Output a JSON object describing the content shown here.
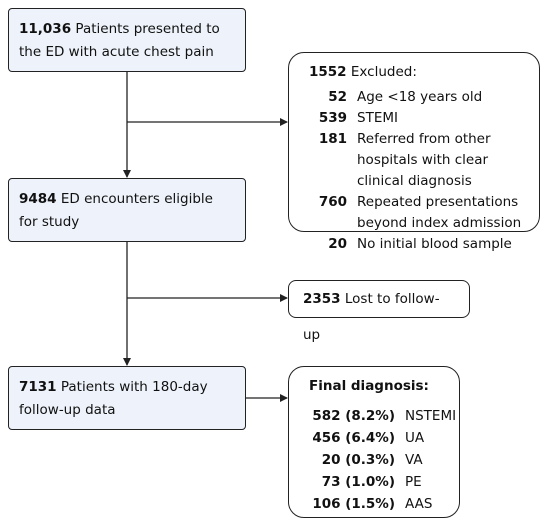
{
  "steps": [
    {
      "number": "11,036",
      "text": "Patients presented to the ED with acute chest pain"
    },
    {
      "number": "9484",
      "text": "ED encounters eligible for study"
    },
    {
      "number": "7131",
      "text": "Patients with 180-day follow-up data"
    }
  ],
  "excluded": {
    "number": "1552",
    "text": "Excluded:",
    "items": [
      {
        "number": "52",
        "text": "Age <18 years old"
      },
      {
        "number": "539",
        "text": "STEMI"
      },
      {
        "number": "181",
        "text": "Referred from other hospitals with clear clinical diagnosis"
      },
      {
        "number": "760",
        "text": "Repeated presentations beyond index admission"
      },
      {
        "number": "20",
        "text": "No initial blood sample"
      }
    ]
  },
  "lost": {
    "number": "2353",
    "text": "Lost to follow-up"
  },
  "final": {
    "title": "Final diagnosis:",
    "items": [
      {
        "number": "582 (8.2%)",
        "text": "NSTEMI"
      },
      {
        "number": "456 (6.4%)",
        "text": "UA"
      },
      {
        "number": "20 (0.3%)",
        "text": "VA"
      },
      {
        "number": "73 (1.0%)",
        "text": "PE"
      },
      {
        "number": "106 (1.5%)",
        "text": "AAS"
      }
    ]
  }
}
